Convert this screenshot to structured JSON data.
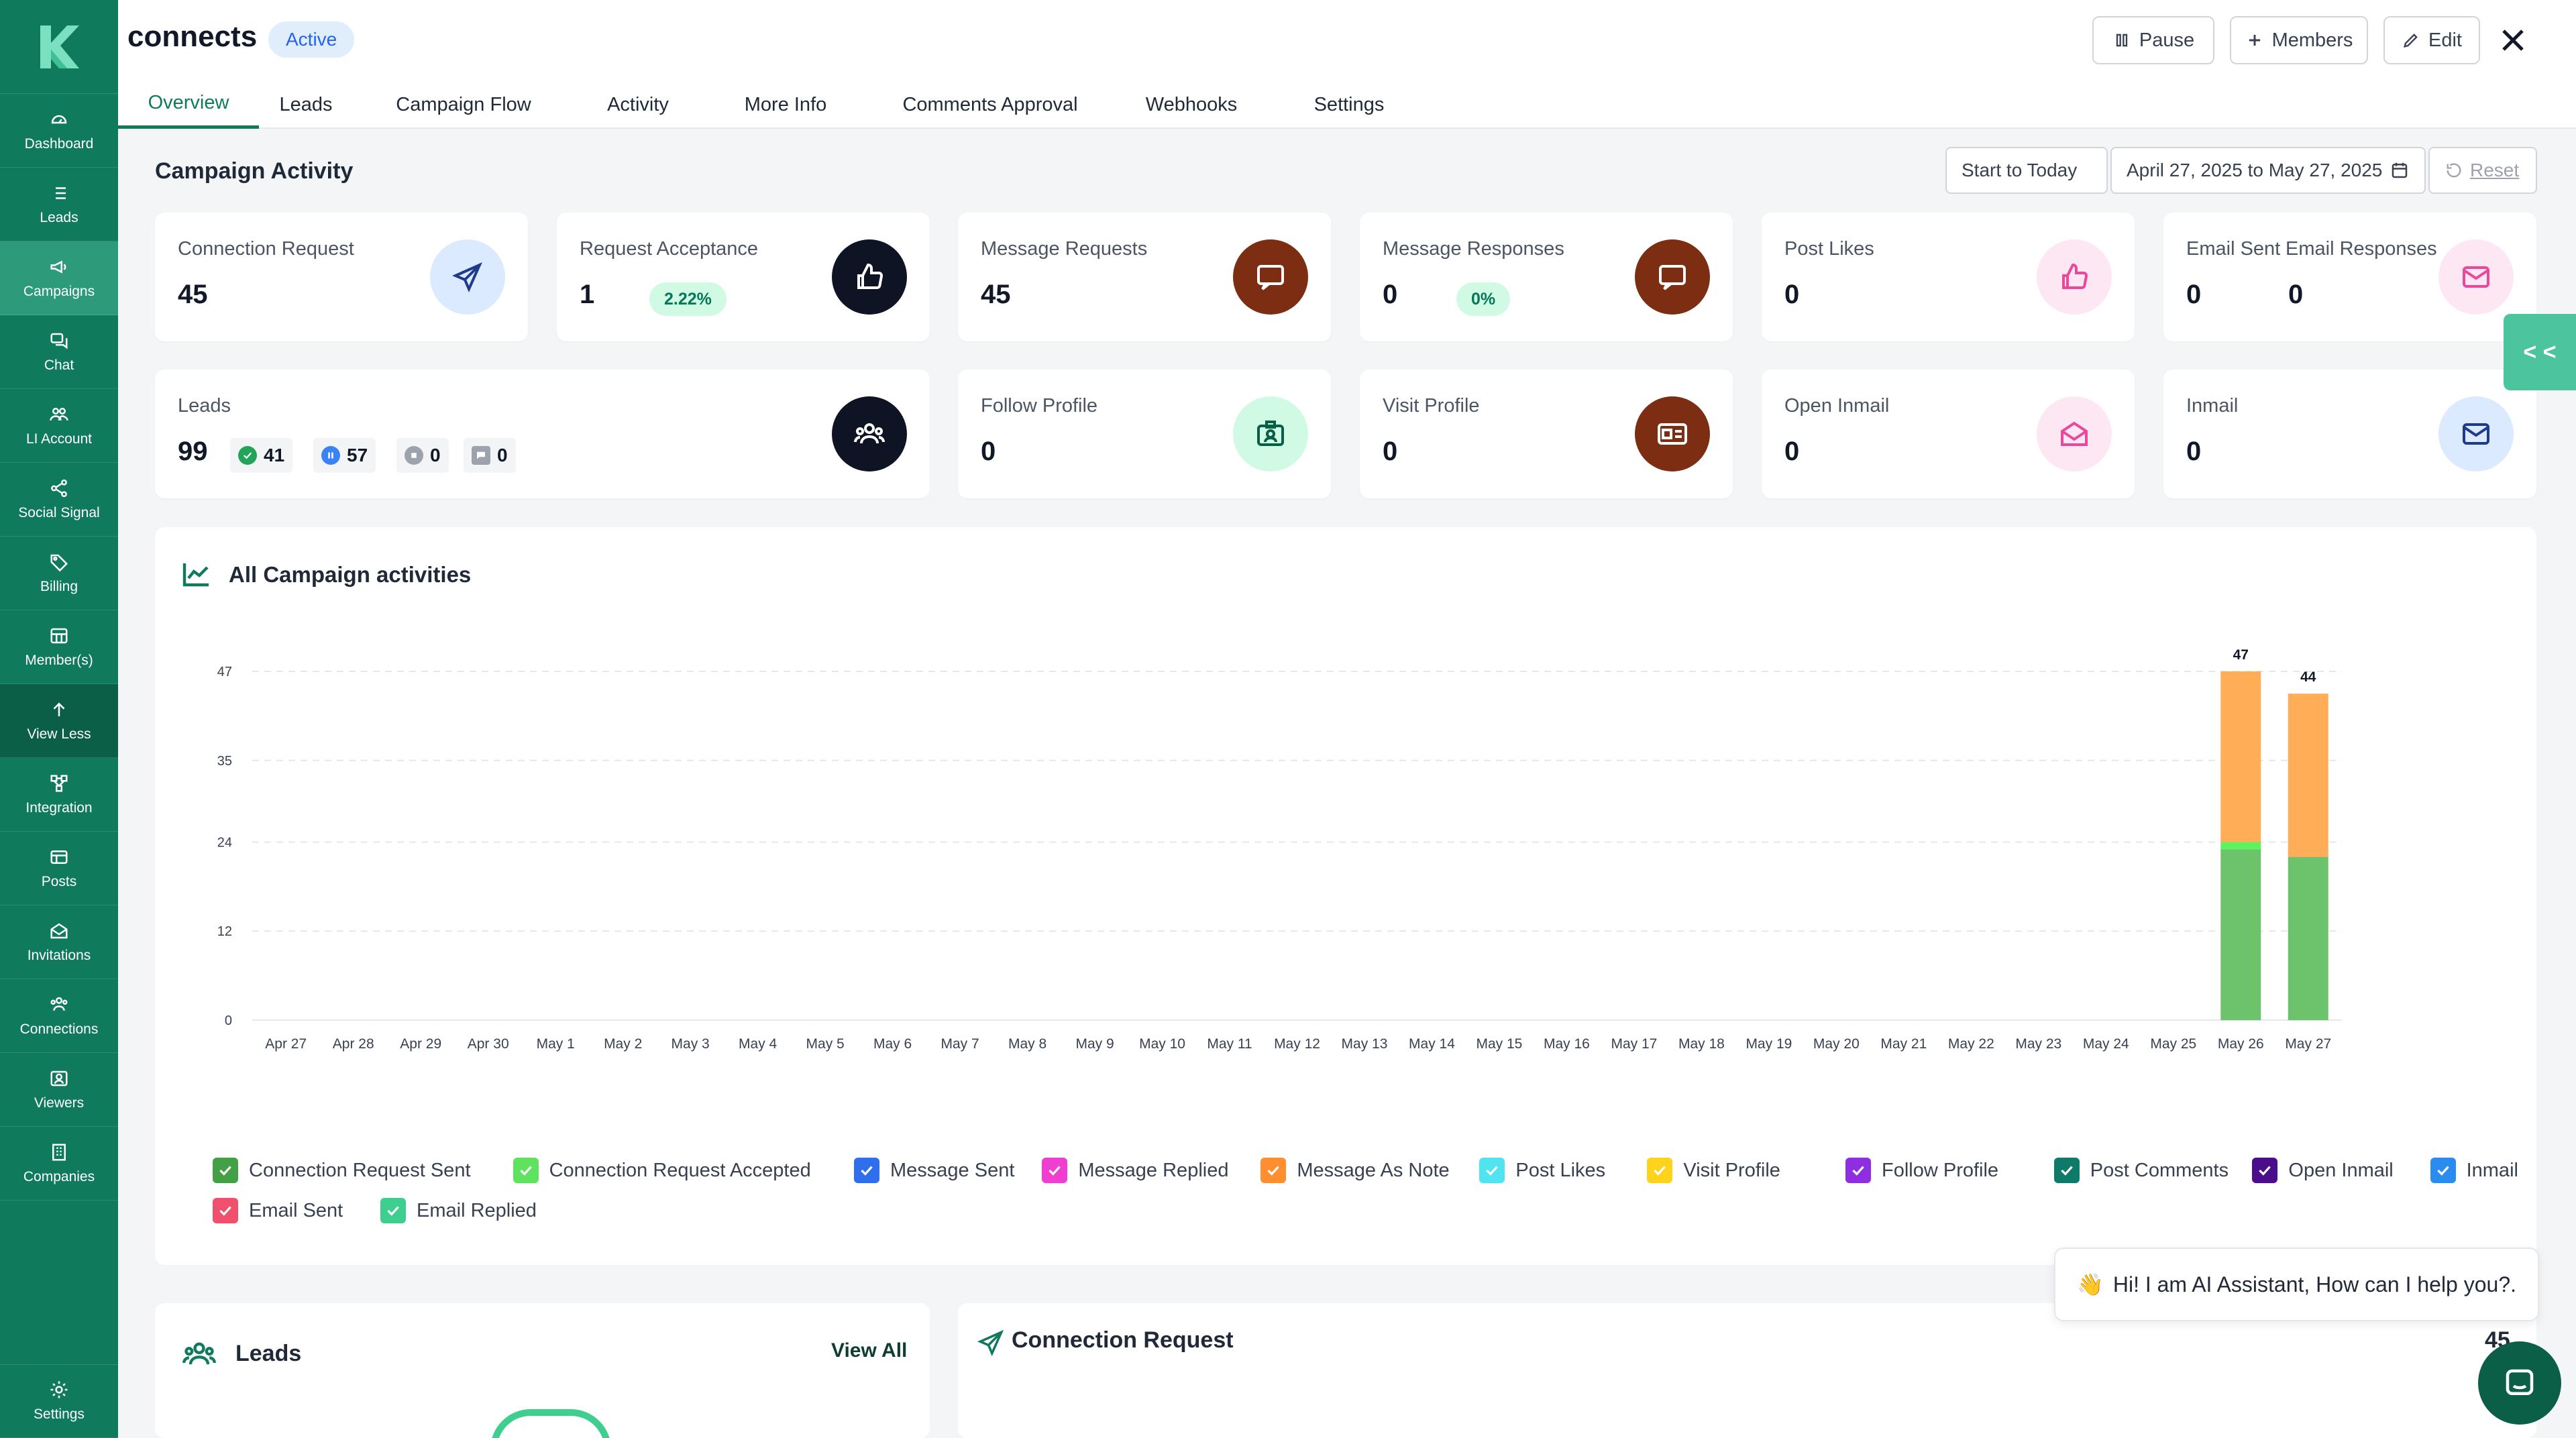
{
  "sidebar": {
    "items": [
      {
        "label": "Dashboard",
        "icon": "dashboard-icon"
      },
      {
        "label": "Leads",
        "icon": "list-icon"
      },
      {
        "label": "Campaigns",
        "icon": "megaphone-icon"
      },
      {
        "label": "Chat",
        "icon": "chat-icon"
      },
      {
        "label": "LI Account",
        "icon": "accounts-icon"
      },
      {
        "label": "Social Signal",
        "icon": "share-icon"
      },
      {
        "label": "Billing",
        "icon": "tag-icon"
      },
      {
        "label": "Member(s)",
        "icon": "members-icon"
      },
      {
        "label": "View Less",
        "icon": "arrow-up-icon"
      },
      {
        "label": "Integration",
        "icon": "integration-icon"
      },
      {
        "label": "Posts",
        "icon": "posts-icon"
      },
      {
        "label": "Invitations",
        "icon": "invitations-icon"
      },
      {
        "label": "Connections",
        "icon": "connections-icon"
      },
      {
        "label": "Viewers",
        "icon": "viewers-icon"
      },
      {
        "label": "Companies",
        "icon": "companies-icon"
      }
    ],
    "settings": "Settings",
    "active": "Campaigns",
    "colors": {
      "bg": "#0f7a5c",
      "active": "#2d9b7a"
    }
  },
  "header": {
    "title": "connects",
    "status": "Active",
    "pause": "Pause",
    "members": "Members",
    "edit": "Edit"
  },
  "tabs": [
    "Overview",
    "Leads",
    "Campaign Flow",
    "Activity",
    "More Info",
    "Comments Approval",
    "Webhooks",
    "Settings"
  ],
  "activity": {
    "title": "Campaign Activity",
    "start_today": "Start to Today",
    "date_range": "April 27, 2025 to May 27, 2025",
    "reset": "Reset"
  },
  "cards": {
    "connection_request": {
      "label": "Connection Request",
      "value": "45"
    },
    "request_acceptance": {
      "label": "Request Acceptance",
      "value": "1",
      "pct": "2.22%"
    },
    "message_requests": {
      "label": "Message Requests",
      "value": "45"
    },
    "message_responses": {
      "label": "Message Responses",
      "value": "0",
      "pct": "0%"
    },
    "post_likes": {
      "label": "Post Likes",
      "value": "0"
    },
    "email_sent": {
      "label": "Email Sent",
      "value": "0"
    },
    "email_responses": {
      "label": "Email Responses",
      "value": "0"
    },
    "leads": {
      "label": "Leads",
      "value": "99",
      "approved": "41",
      "paused": "57",
      "stopped": "0",
      "replied": "0"
    },
    "follow_profile": {
      "label": "Follow Profile",
      "value": "0"
    },
    "visit_profile": {
      "label": "Visit Profile",
      "value": "0"
    },
    "open_inmail": {
      "label": "Open Inmail",
      "value": "0"
    },
    "inmail": {
      "label": "Inmail",
      "value": "0"
    }
  },
  "chart_title": "All Campaign activities",
  "chart_data": {
    "type": "bar",
    "stacked": true,
    "categories": [
      "Apr 27",
      "Apr 28",
      "Apr 29",
      "Apr 30",
      "May 1",
      "May 2",
      "May 3",
      "May 4",
      "May 5",
      "May 6",
      "May 7",
      "May 8",
      "May 9",
      "May 10",
      "May 11",
      "May 12",
      "May 13",
      "May 14",
      "May 15",
      "May 16",
      "May 17",
      "May 18",
      "May 19",
      "May 20",
      "May 21",
      "May 22",
      "May 23",
      "May 24",
      "May 25",
      "May 26",
      "May 27"
    ],
    "series": [
      {
        "name": "Connection Request Sent",
        "color": "#6cc36c",
        "values": [
          0,
          0,
          0,
          0,
          0,
          0,
          0,
          0,
          0,
          0,
          0,
          0,
          0,
          0,
          0,
          0,
          0,
          0,
          0,
          0,
          0,
          0,
          0,
          0,
          0,
          0,
          0,
          0,
          0,
          23,
          22
        ]
      },
      {
        "name": "Connection Request Accepted",
        "color": "#5ff25f",
        "values": [
          0,
          0,
          0,
          0,
          0,
          0,
          0,
          0,
          0,
          0,
          0,
          0,
          0,
          0,
          0,
          0,
          0,
          0,
          0,
          0,
          0,
          0,
          0,
          0,
          0,
          0,
          0,
          0,
          0,
          1,
          0
        ]
      },
      {
        "name": "Message As Note",
        "color": "#ffae57",
        "values": [
          0,
          0,
          0,
          0,
          0,
          0,
          0,
          0,
          0,
          0,
          0,
          0,
          0,
          0,
          0,
          0,
          0,
          0,
          0,
          0,
          0,
          0,
          0,
          0,
          0,
          0,
          0,
          0,
          0,
          23,
          22
        ]
      }
    ],
    "totals_shown": {
      "May 26": "47",
      "May 27": "44"
    },
    "yticks": [
      0,
      12,
      24,
      35,
      47
    ],
    "ylim": [
      0,
      47
    ],
    "grid": true,
    "legend_position": "bottom"
  },
  "legend": [
    {
      "label": "Connection Request Sent",
      "color": "#43a047"
    },
    {
      "label": "Connection Request Accepted",
      "color": "#5fe35f"
    },
    {
      "label": "Message Sent",
      "color": "#2f6fed"
    },
    {
      "label": "Message Replied",
      "color": "#f03fd0"
    },
    {
      "label": "Message As Note",
      "color": "#ff8f2e"
    },
    {
      "label": "Post Likes",
      "color": "#4fe4f0"
    },
    {
      "label": "Visit Profile",
      "color": "#ffd21c"
    },
    {
      "label": "Follow Profile",
      "color": "#8e2ee0"
    },
    {
      "label": "Post Comments",
      "color": "#0f7a6a"
    },
    {
      "label": "Open Inmail",
      "color": "#4b0d8a"
    },
    {
      "label": "Inmail",
      "color": "#2b8cf0"
    },
    {
      "label": "Email Sent",
      "color": "#f0506e"
    },
    {
      "label": "Email Replied",
      "color": "#3ecf8e"
    }
  ],
  "bottom": {
    "leads_title": "Leads",
    "view_all": "View All",
    "connection_title": "Connection Request",
    "connection_count": "45"
  },
  "assistant": {
    "emoji": "👋",
    "text": "Hi! I am AI Assistant, How can I help you?."
  },
  "collapse_label": "< <"
}
